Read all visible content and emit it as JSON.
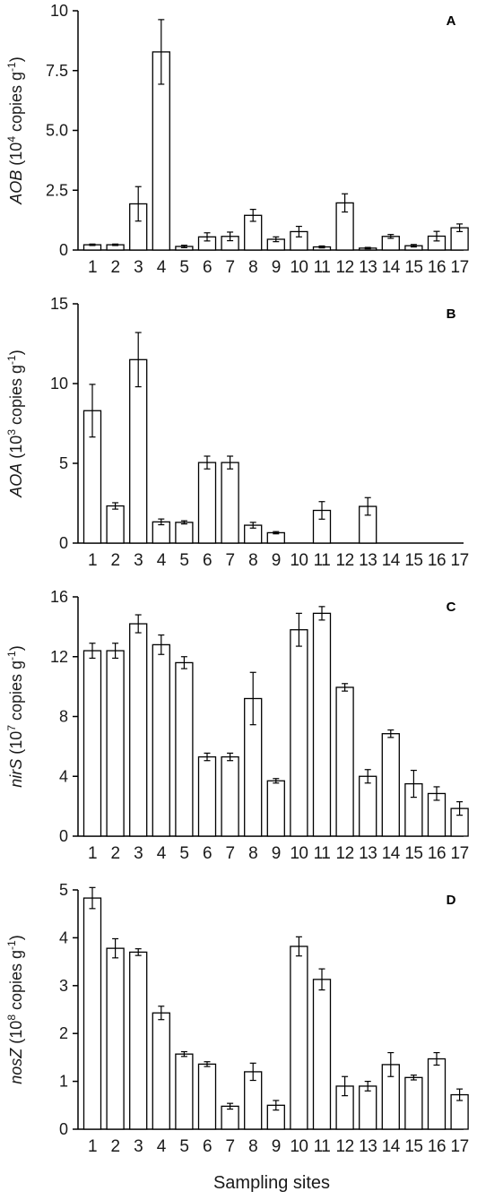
{
  "figure": {
    "x_label": "Sampling sites"
  },
  "chart_data": [
    {
      "type": "bar",
      "panel_label": "A",
      "ylabel_gene": "AOB",
      "ylabel_rest": " (10",
      "ylabel_sup": "4",
      "ylabel_unit": " copies g",
      "ylabel_unit_sup": "-1",
      "ylabel_close": ")",
      "ylim": [
        0,
        10
      ],
      "yticks": [
        0,
        2.5,
        5.0,
        7.5,
        10
      ],
      "ytick_labels": [
        "0",
        "2.5",
        "5.0",
        "7.5",
        "10"
      ],
      "categories": [
        "1",
        "2",
        "3",
        "4",
        "5",
        "6",
        "7",
        "8",
        "9",
        "10",
        "11",
        "12",
        "13",
        "14",
        "15",
        "16",
        "17"
      ],
      "values": [
        0.22,
        0.22,
        1.93,
        8.28,
        0.15,
        0.55,
        0.57,
        1.45,
        0.45,
        0.77,
        0.13,
        1.97,
        0.08,
        0.57,
        0.18,
        0.58,
        0.93
      ],
      "errors": [
        0.03,
        0.03,
        0.72,
        1.35,
        0.05,
        0.17,
        0.18,
        0.25,
        0.1,
        0.22,
        0.04,
        0.38,
        0.03,
        0.08,
        0.05,
        0.2,
        0.16
      ]
    },
    {
      "type": "bar",
      "panel_label": "B",
      "ylabel_gene": "AOA",
      "ylabel_rest": " (10",
      "ylabel_sup": "3",
      "ylabel_unit": " copies g",
      "ylabel_unit_sup": "-1",
      "ylabel_close": ")",
      "ylim": [
        0,
        15
      ],
      "yticks": [
        0,
        5,
        10,
        15
      ],
      "ytick_labels": [
        "0",
        "5",
        "10",
        "15"
      ],
      "categories": [
        "1",
        "2",
        "3",
        "4",
        "5",
        "6",
        "7",
        "8",
        "9",
        "10",
        "11",
        "12",
        "13",
        "14",
        "15",
        "16",
        "17"
      ],
      "values": [
        8.3,
        2.33,
        11.5,
        1.33,
        1.3,
        5.05,
        5.05,
        1.12,
        0.65,
        0,
        2.05,
        0,
        2.3,
        0,
        0,
        0,
        0
      ],
      "errors": [
        1.65,
        0.2,
        1.7,
        0.18,
        0.1,
        0.4,
        0.4,
        0.18,
        0.07,
        0,
        0.55,
        0,
        0.55,
        0,
        0,
        0,
        0
      ]
    },
    {
      "type": "bar",
      "panel_label": "C",
      "ylabel_gene": "nirS",
      "ylabel_rest": " (10",
      "ylabel_sup": "7",
      "ylabel_unit": " copies g",
      "ylabel_unit_sup": "-1",
      "ylabel_close": ")",
      "ylim": [
        0,
        16
      ],
      "yticks": [
        0,
        4,
        8,
        12,
        16
      ],
      "ytick_labels": [
        "0",
        "4",
        "8",
        "12",
        "16"
      ],
      "categories": [
        "1",
        "2",
        "3",
        "4",
        "5",
        "6",
        "7",
        "8",
        "9",
        "10",
        "11",
        "12",
        "13",
        "14",
        "15",
        "16",
        "17"
      ],
      "values": [
        12.4,
        12.4,
        14.2,
        12.8,
        11.6,
        5.3,
        5.3,
        9.2,
        3.7,
        13.8,
        14.9,
        9.95,
        4.0,
        6.85,
        3.5,
        2.85,
        1.85
      ],
      "errors": [
        0.5,
        0.5,
        0.6,
        0.65,
        0.4,
        0.25,
        0.25,
        1.75,
        0.15,
        1.1,
        0.45,
        0.25,
        0.45,
        0.25,
        0.9,
        0.45,
        0.45
      ]
    },
    {
      "type": "bar",
      "panel_label": "D",
      "ylabel_gene": "nosZ",
      "ylabel_rest": " (10",
      "ylabel_sup": "8",
      "ylabel_unit": " copies g",
      "ylabel_unit_sup": "-1",
      "ylabel_close": ")",
      "ylim": [
        0,
        5
      ],
      "yticks": [
        0,
        1,
        2,
        3,
        4,
        5
      ],
      "ytick_labels": [
        "0",
        "1",
        "2",
        "3",
        "4",
        "5"
      ],
      "categories": [
        "1",
        "2",
        "3",
        "4",
        "5",
        "6",
        "7",
        "8",
        "9",
        "10",
        "11",
        "12",
        "13",
        "14",
        "15",
        "16",
        "17"
      ],
      "values": [
        4.83,
        3.78,
        3.7,
        2.43,
        1.57,
        1.36,
        0.48,
        1.2,
        0.5,
        3.82,
        3.13,
        0.9,
        0.9,
        1.35,
        1.08,
        1.47,
        0.72
      ],
      "errors": [
        0.22,
        0.2,
        0.07,
        0.14,
        0.05,
        0.05,
        0.06,
        0.18,
        0.1,
        0.2,
        0.22,
        0.2,
        0.1,
        0.25,
        0.05,
        0.13,
        0.12
      ]
    }
  ]
}
